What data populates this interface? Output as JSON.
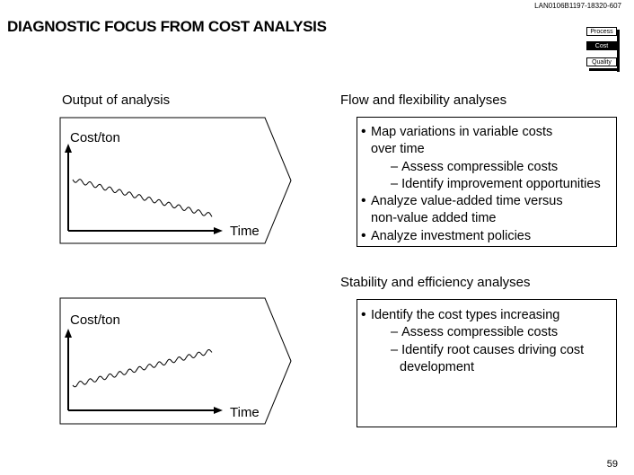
{
  "doc_id": "LAN0106B1197-18320-607",
  "title": "DIAGNOSTIC FOCUS FROM COST ANALYSIS",
  "nav": {
    "items": [
      "Process",
      "Cost",
      "Quality"
    ],
    "active": "Cost"
  },
  "left_heading": "Output of analysis",
  "panel_top": {
    "heading": "Flow and flexibility analyses",
    "chart_ylabel": "Cost/ton",
    "chart_xlabel": "Time",
    "trend": "decreasing",
    "bullets": [
      {
        "text": "Map variations in variable costs",
        "cont": "over time",
        "subs": [
          "Assess compressible costs",
          "Identify improvement opportunities"
        ]
      },
      {
        "text": "Analyze value-added time versus",
        "cont": "non-value added time",
        "subs": []
      },
      {
        "text": "Analyze investment policies",
        "cont": "",
        "subs": []
      }
    ]
  },
  "panel_bottom": {
    "heading": "Stability and efficiency analyses",
    "chart_ylabel": "Cost/ton",
    "chart_xlabel": "Time",
    "trend": "increasing",
    "bullets": [
      {
        "text": "Identify the cost types increasing",
        "cont": "",
        "subs": [
          "Assess compressible costs",
          "Identify root causes driving cost"
        ],
        "sub_cont": "development"
      }
    ]
  },
  "page_number": "59"
}
